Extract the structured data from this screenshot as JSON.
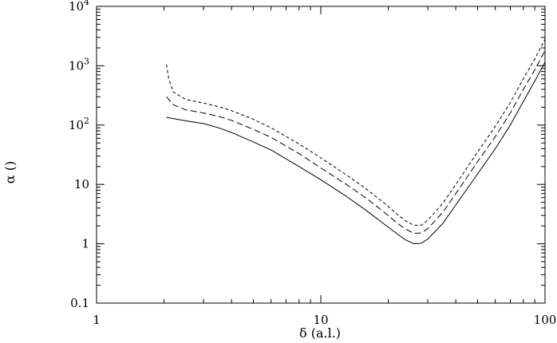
{
  "chart_data": {
    "type": "line",
    "xscale": "log",
    "yscale": "log",
    "xlim": [
      1,
      100
    ],
    "ylim": [
      0.1,
      10000
    ],
    "xlabel": "δ (a.l.)",
    "ylabel": "α ()",
    "x_ticks": [
      {
        "value": 1,
        "label": "1"
      },
      {
        "value": 10,
        "label": "10"
      },
      {
        "value": 100,
        "label": "100"
      }
    ],
    "y_ticks": [
      {
        "value": 0.1,
        "label": "0.1"
      },
      {
        "value": 1,
        "label": "1"
      },
      {
        "value": 10,
        "label": "10"
      },
      {
        "value": 100,
        "label": "10",
        "sup": "2"
      },
      {
        "value": 1000,
        "label": "10",
        "sup": "3"
      },
      {
        "value": 10000,
        "label": "10",
        "sup": "4"
      }
    ],
    "grid": false,
    "legend": "none",
    "series": [
      {
        "style": "solid",
        "points": [
          [
            2.05,
            135
          ],
          [
            2.5,
            118
          ],
          [
            3,
            106
          ],
          [
            3.5,
            90
          ],
          [
            4,
            75
          ],
          [
            5,
            52
          ],
          [
            6,
            38
          ],
          [
            8,
            20
          ],
          [
            10,
            12
          ],
          [
            13,
            6.3
          ],
          [
            16,
            3.6
          ],
          [
            19,
            2.2
          ],
          [
            22,
            1.45
          ],
          [
            24,
            1.15
          ],
          [
            26,
            1.0
          ],
          [
            28,
            1.02
          ],
          [
            30,
            1.2
          ],
          [
            35,
            2.2
          ],
          [
            40,
            4.5
          ],
          [
            50,
            15
          ],
          [
            60,
            40
          ],
          [
            70,
            100
          ],
          [
            80,
            250
          ],
          [
            90,
            550
          ],
          [
            100,
            1150
          ]
        ]
      },
      {
        "style": "dashed",
        "points": [
          [
            2.05,
            300
          ],
          [
            2.2,
            220
          ],
          [
            2.5,
            180
          ],
          [
            3,
            160
          ],
          [
            3.5,
            140
          ],
          [
            4,
            120
          ],
          [
            5,
            85
          ],
          [
            6,
            62
          ],
          [
            8,
            33
          ],
          [
            10,
            19
          ],
          [
            13,
            10
          ],
          [
            16,
            5.8
          ],
          [
            19,
            3.5
          ],
          [
            22,
            2.2
          ],
          [
            24,
            1.75
          ],
          [
            26,
            1.5
          ],
          [
            28,
            1.52
          ],
          [
            30,
            1.8
          ],
          [
            35,
            3.4
          ],
          [
            40,
            7
          ],
          [
            50,
            24
          ],
          [
            60,
            64
          ],
          [
            70,
            160
          ],
          [
            80,
            400
          ],
          [
            90,
            850
          ],
          [
            100,
            1800
          ]
        ]
      },
      {
        "style": "dotted",
        "points": [
          [
            2.05,
            1050
          ],
          [
            2.1,
            600
          ],
          [
            2.2,
            360
          ],
          [
            2.5,
            270
          ],
          [
            3,
            235
          ],
          [
            3.5,
            205
          ],
          [
            4,
            175
          ],
          [
            5,
            125
          ],
          [
            6,
            90
          ],
          [
            8,
            48
          ],
          [
            10,
            28
          ],
          [
            13,
            14.5
          ],
          [
            16,
            8.3
          ],
          [
            19,
            5
          ],
          [
            22,
            3.1
          ],
          [
            24,
            2.4
          ],
          [
            26,
            2.05
          ],
          [
            28,
            2.05
          ],
          [
            30,
            2.5
          ],
          [
            35,
            4.8
          ],
          [
            40,
            10
          ],
          [
            50,
            35
          ],
          [
            60,
            95
          ],
          [
            70,
            240
          ],
          [
            80,
            600
          ],
          [
            90,
            1300
          ],
          [
            100,
            2800
          ]
        ]
      }
    ]
  }
}
